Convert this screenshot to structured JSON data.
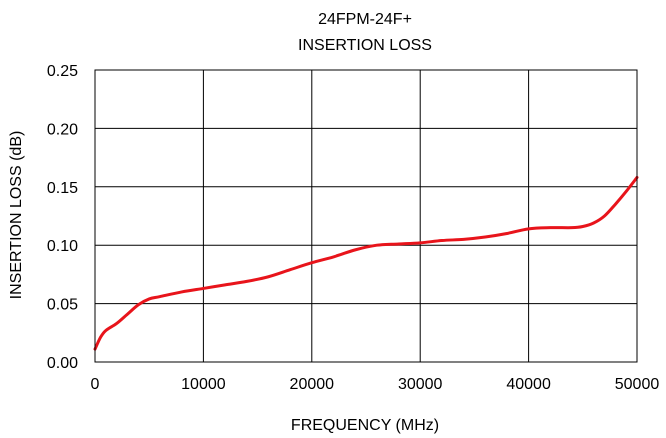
{
  "chart_data": {
    "type": "line",
    "title": [
      "24FPM-24F+",
      "INSERTION LOSS"
    ],
    "xlabel": "FREQUENCY (MHz)",
    "ylabel": "INSERTION LOSS (dB)",
    "xlim": [
      0,
      50000
    ],
    "ylim": [
      0,
      0.25
    ],
    "x_ticks": [
      0,
      10000,
      20000,
      30000,
      40000,
      50000
    ],
    "x_tick_labels": [
      "0",
      "10000",
      "20000",
      "30000",
      "40000",
      "50000"
    ],
    "y_ticks": [
      0,
      0.05,
      0.1,
      0.15,
      0.2,
      0.25
    ],
    "y_tick_labels": [
      "0.00",
      "0.05",
      "0.10",
      "0.15",
      "0.20",
      "0.25"
    ],
    "grid": true,
    "series": [
      {
        "color": "#e8141b",
        "x": [
          0,
          500,
          1000,
          2000,
          3000,
          4000,
          5000,
          6000,
          8000,
          10000,
          12000,
          14000,
          16000,
          18000,
          20000,
          22000,
          24000,
          26000,
          28000,
          30000,
          32000,
          34000,
          36000,
          38000,
          40000,
          42000,
          44000,
          45000,
          46000,
          47000,
          48000,
          49000,
          50000
        ],
        "y": [
          0.011,
          0.021,
          0.027,
          0.033,
          0.041,
          0.049,
          0.054,
          0.056,
          0.06,
          0.063,
          0.066,
          0.069,
          0.073,
          0.079,
          0.085,
          0.09,
          0.096,
          0.1,
          0.101,
          0.102,
          0.104,
          0.105,
          0.107,
          0.11,
          0.114,
          0.115,
          0.115,
          0.116,
          0.119,
          0.125,
          0.135,
          0.146,
          0.158
        ]
      }
    ]
  }
}
